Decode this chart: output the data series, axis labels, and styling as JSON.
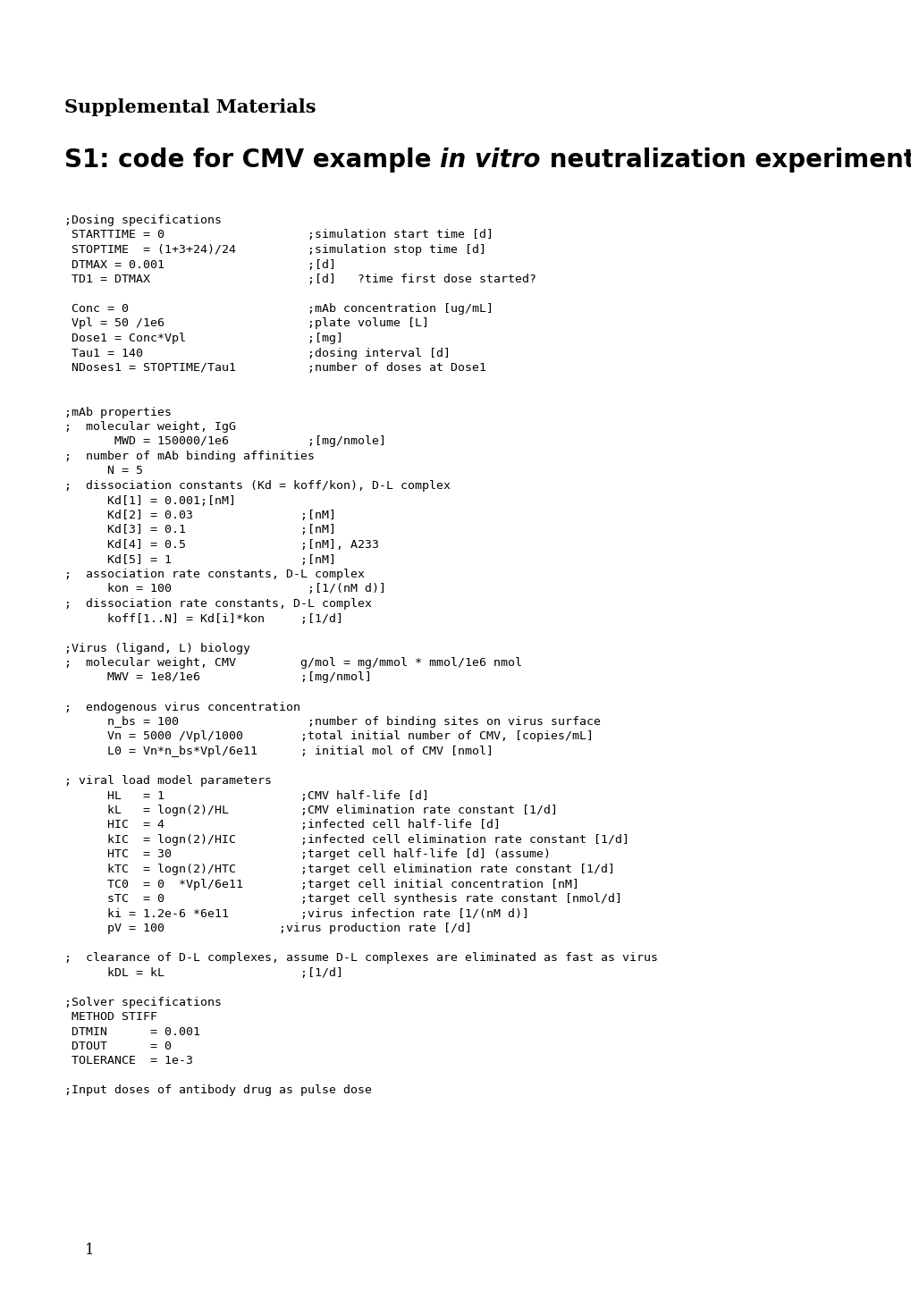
{
  "title1": "Supplemental Materials",
  "title2_parts": [
    {
      "text": "S1: code for CMV example ",
      "bold": true,
      "italic": false
    },
    {
      "text": "in vitro",
      "bold": true,
      "italic": true
    },
    {
      "text": " neutralization experiment",
      "bold": true,
      "italic": false
    }
  ],
  "background_color": "#ffffff",
  "text_color": "#000000",
  "code_lines": [
    ";Dosing specifications",
    " STARTTIME = 0                    ;simulation start time [d]",
    " STOPTIME  = (1+3+24)/24          ;simulation stop time [d]",
    " DTMAX = 0.001                    ;[d]",
    " TD1 = DTMAX                      ;[d]   ?time first dose started?",
    "",
    " Conc = 0                         ;mAb concentration [ug/mL]",
    " Vpl = 50 /1e6                    ;plate volume [L]",
    " Dose1 = Conc*Vpl                 ;[mg]",
    " Tau1 = 140                       ;dosing interval [d]",
    " NDoses1 = STOPTIME/Tau1          ;number of doses at Dose1",
    "",
    "",
    ";mAb properties",
    ";  molecular weight, IgG",
    "       MWD = 150000/1e6           ;[mg/nmole]",
    ";  number of mAb binding affinities",
    "      N = 5",
    ";  dissociation constants (Kd = koff/kon), D-L complex",
    "      Kd[1] = 0.001;[nM]",
    "      Kd[2] = 0.03               ;[nM]",
    "      Kd[3] = 0.1                ;[nM]",
    "      Kd[4] = 0.5                ;[nM], A233",
    "      Kd[5] = 1                  ;[nM]",
    ";  association rate constants, D-L complex",
    "      kon = 100                   ;[1/(nM d)]",
    ";  dissociation rate constants, D-L complex",
    "      koff[1..N] = Kd[i]*kon     ;[1/d]",
    "",
    ";Virus (ligand, L) biology",
    ";  molecular weight, CMV         g/mol = mg/mmol * mmol/1e6 nmol",
    "      MWV = 1e8/1e6              ;[mg/nmol]",
    "",
    ";  endogenous virus concentration",
    "      n_bs = 100                  ;number of binding sites on virus surface",
    "      Vn = 5000 /Vpl/1000        ;total initial number of CMV, [copies/mL]",
    "      L0 = Vn*n_bs*Vpl/6e11      ; initial mol of CMV [nmol]",
    "",
    "; viral load model parameters",
    "      HL   = 1                   ;CMV half-life [d]",
    "      kL   = logn(2)/HL          ;CMV elimination rate constant [1/d]",
    "      HIC  = 4                   ;infected cell half-life [d]",
    "      kIC  = logn(2)/HIC         ;infected cell elimination rate constant [1/d]",
    "      HTC  = 30                  ;target cell half-life [d] (assume)",
    "      kTC  = logn(2)/HTC         ;target cell elimination rate constant [1/d]",
    "      TC0  = 0  *Vpl/6e11        ;target cell initial concentration [nM]",
    "      sTC  = 0                   ;target cell synthesis rate constant [nmol/d]",
    "      ki = 1.2e-6 *6e11          ;virus infection rate [1/(nM d)]",
    "      pV = 100                ;virus production rate [/d]",
    "",
    ";  clearance of D-L complexes, assume D-L complexes are eliminated as fast as virus",
    "      kDL = kL                   ;[1/d]",
    "",
    ";Solver specifications",
    " METHOD STIFF",
    " DTMIN      = 0.001",
    " DTOUT      = 0",
    " TOLERANCE  = 1e-3",
    "",
    ";Input doses of antibody drug as pulse dose"
  ],
  "page_number": "1",
  "title1_fontsize": 15,
  "title2_fontsize": 20,
  "code_fontsize": 9.5,
  "page_num_fontsize": 12
}
